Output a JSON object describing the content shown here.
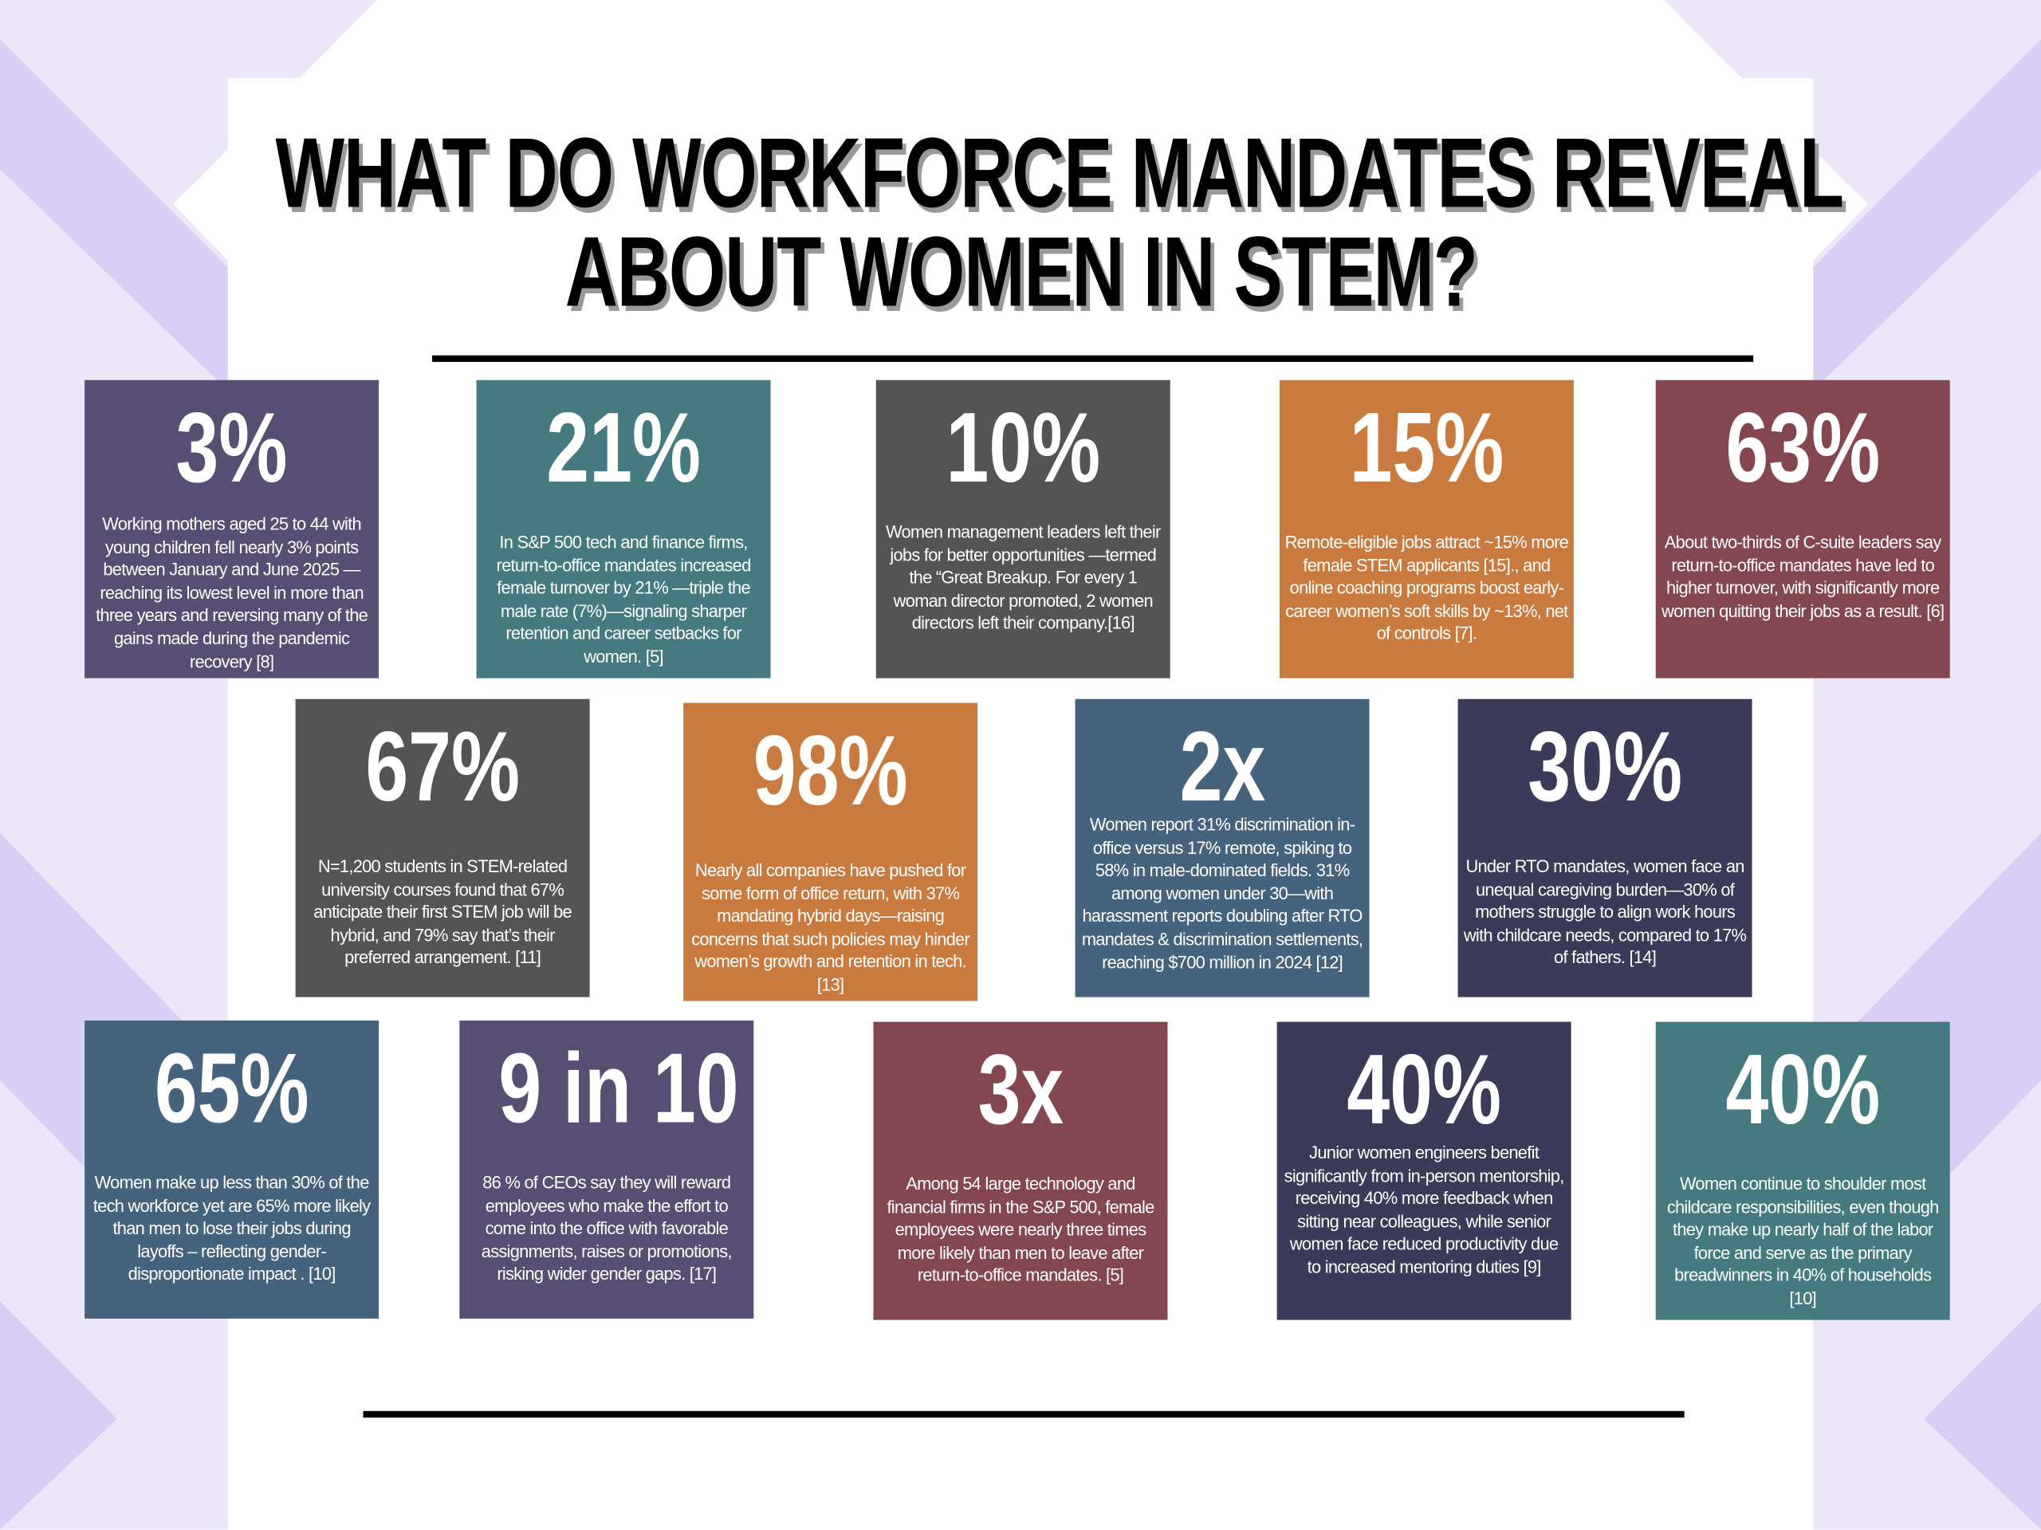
{
  "title": {
    "line1": "WHAT DO WORKFORCE MANDATES REVEAL",
    "line2": "ABOUT WOMEN IN STEM?"
  },
  "colors": {
    "purple": "#574e74",
    "teal": "#447a80",
    "gray": "#545454",
    "orange": "#c97b3f",
    "maroon": "#84464f",
    "slate_blue": "#46637d",
    "dark_navy": "#3b3a58",
    "background_stripe_light": "#ebe6f8",
    "background_stripe": "#d9cff5"
  },
  "stats": [
    {
      "value": "3%",
      "color": "#574e74",
      "text": "Working mothers aged 25 to 44 with young children fell nearly 3% points between January and June 2025 — reaching its lowest level in more than three years and reversing many of the gains made during the pandemic recovery [8]"
    },
    {
      "value": "21%",
      "color": "#447a80",
      "text": "In S&P 500 tech and finance firms, return-to-office mandates increased female turnover by 21% —triple the male rate (7%)—signaling sharper retention and career setbacks for women. [5]"
    },
    {
      "value": "10%",
      "color": "#545454",
      "text": "Women management leaders left their jobs for better opportunities —termed the “Great Breakup. For every 1 woman director promoted, 2 women directors left their company.[16]"
    },
    {
      "value": "15%",
      "color": "#c97b3f",
      "text": "Remote-eligible jobs attract ~15% more female STEM applicants  [15]., and online coaching programs boost early-career women’s soft skills by ~13%, net of controls [7]."
    },
    {
      "value": "63%",
      "color": "#84464f",
      "text": "About two-thirds of C-suite leaders say return-to-office mandates have led to higher turnover, with significantly more women quitting their jobs as a result. [6]"
    },
    {
      "value": "67%",
      "color": "#545454",
      "text": "N=1,200 students in STEM-related university courses found that 67% anticipate their first STEM job will be hybrid, and 79% say that’s their preferred arrangement. [11]"
    },
    {
      "value": "98%",
      "color": "#c97b3f",
      "text": "Nearly all companies have pushed for some form of office return, with 37% mandating hybrid days—raising concerns that such policies may hinder women’s growth and retention in tech. [13]"
    },
    {
      "value": "2x",
      "color": "#46637d",
      "text": "Women report 31% discrimination in-office versus 17% remote, spiking to 58% in male-dominated fields. 31% among women under 30—with harassment reports doubling after RTO mandates & discrimination settlements, reaching $700 million in 2024 [12]"
    },
    {
      "value": "30%",
      "color": "#3b3a58",
      "text": "Under RTO mandates, women face an unequal caregiving burden—30% of mothers struggle to align work hours with childcare needs, compared to 17% of fathers. [14]"
    },
    {
      "value": "65%",
      "color": "#46637d",
      "text": "Women make up less than 30% of the tech workforce yet are 65% more likely than men to lose their jobs during layoffs – reflecting  gender-disproportionate impact . [10]"
    },
    {
      "value": "9 in 10",
      "color": "#574e74",
      "text": "86 % of CEOs say they will reward employees who make the effort to come into the office with favorable assignments, raises or promotions, risking wider gender gaps.  [17]"
    },
    {
      "value": "3x",
      "color": "#84464f",
      "text": "Among 54 large technology and financial firms in the S&P 500, female employees were nearly three times more likely than men to leave after return-to-office mandates. [5]"
    },
    {
      "value": "40%",
      "color": "#3b3a58",
      "text": "Junior women engineers benefit significantly from in-person mentorship, receiving 40% more feedback when sitting near colleagues, while senior women face reduced productivity due to increased mentoring duties [9]"
    },
    {
      "value": "40%",
      "color": "#447a80",
      "text": "Women continue to shoulder most childcare responsibilities, even though they make up nearly half of the labor force and serve as the primary breadwinners in 40% of households [10]"
    }
  ]
}
